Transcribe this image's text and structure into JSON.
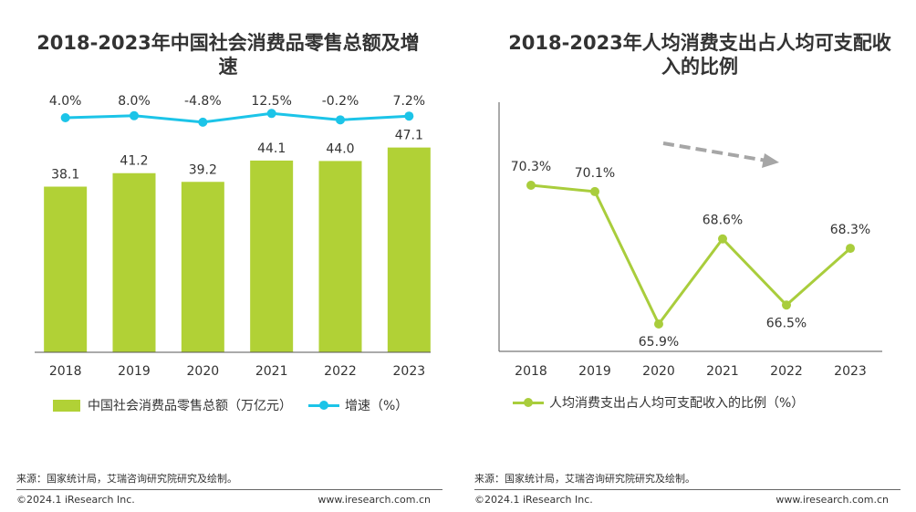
{
  "left": {
    "title": "2018-2023年中国社会消费品零售总额及增速",
    "legend": {
      "bar_label": "中国社会消费品零售总额（万亿元）",
      "line_label": "增速（%）"
    },
    "source": "来源：国家统计局，艾瑞咨询研究院研究及绘制。",
    "copyright": "©2024.1 iResearch Inc.",
    "website": "www.iresearch.com.cn"
  },
  "right": {
    "title": "2018-2023年人均消费支出占人均可支配收入的比例",
    "legend": {
      "line_label": "人均消费支出占人均可支配收入的比例（%）"
    },
    "source": "来源：国家统计局，艾瑞咨询研究院研究及绘制。",
    "copyright": "©2024.1 iResearch Inc.",
    "website": "www.iresearch.com.cn"
  },
  "colors": {
    "bar": "#b1d136",
    "growth_line": "#1cc4e8",
    "ratio_line": "#a9cd3c",
    "trend_arrow": "#a6a6a6",
    "axis": "#555555"
  },
  "chart_data": [
    {
      "type": "bar",
      "title": "2018-2023年中国社会消费品零售总额及增速",
      "categories": [
        "2018",
        "2019",
        "2020",
        "2021",
        "2022",
        "2023"
      ],
      "series": [
        {
          "name": "中国社会消费品零售总额（万亿元）",
          "type": "bar",
          "values": [
            38.1,
            41.2,
            39.2,
            44.1,
            44.0,
            47.1
          ],
          "labels": [
            "38.1",
            "41.2",
            "39.2",
            "44.1",
            "44.0",
            "47.1"
          ]
        },
        {
          "name": "增速（%）",
          "type": "line",
          "values": [
            4.0,
            8.0,
            -4.8,
            12.5,
            -0.2,
            7.2
          ],
          "labels": [
            "4.0%",
            "8.0%",
            "-4.8%",
            "12.5%",
            "-0.2%",
            "7.2%"
          ]
        }
      ],
      "ylim": [
        0,
        55
      ],
      "legend_position": "bottom"
    },
    {
      "type": "line",
      "title": "2018-2023年人均消费支出占人均可支配收入的比例",
      "categories": [
        "2018",
        "2019",
        "2020",
        "2021",
        "2022",
        "2023"
      ],
      "series": [
        {
          "name": "人均消费支出占人均可支配收入的比例（%）",
          "values": [
            70.3,
            70.1,
            65.9,
            68.6,
            66.5,
            68.3
          ],
          "labels": [
            "70.3%",
            "70.1%",
            "65.9%",
            "68.6%",
            "66.5%",
            "68.3%"
          ]
        }
      ],
      "ylim": [
        64,
        72
      ],
      "trend": "down",
      "legend_position": "bottom"
    }
  ]
}
